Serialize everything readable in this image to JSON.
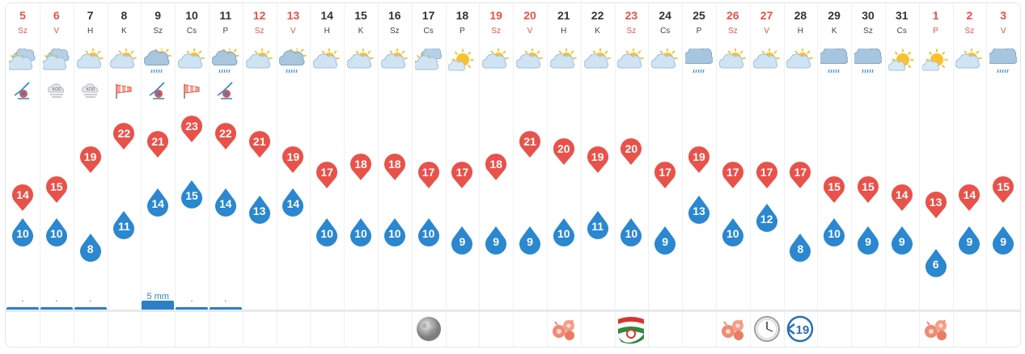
{
  "colors": {
    "max": "#e8524a",
    "min": "#2a87d0",
    "rain": "#2a7fc9",
    "weekend": "#e8524a"
  },
  "days": [
    {
      "day": "5",
      "dow": "Sz",
      "weekend": true,
      "icon": "partly-cloudy-sun-icon",
      "sub": "wind-storm-warning-icon",
      "max": "14",
      "min": "10",
      "rain": ".",
      "rain_mm": 1,
      "event": ""
    },
    {
      "day": "6",
      "dow": "V",
      "weekend": true,
      "icon": "partly-cloudy-sun-icon",
      "sub": "fog-icon",
      "max": "15",
      "min": "10",
      "rain": ".",
      "rain_mm": 1,
      "event": ""
    },
    {
      "day": "7",
      "dow": "H",
      "weekend": false,
      "icon": "sun-cloud-icon",
      "sub": "fog-icon",
      "max": "19",
      "min": "8",
      "rain": ".",
      "rain_mm": 1,
      "event": ""
    },
    {
      "day": "8",
      "dow": "K",
      "weekend": false,
      "icon": "sun-cloud-icon",
      "sub": "windsock-icon",
      "max": "22",
      "min": "11",
      "rain": "",
      "rain_mm": 0,
      "event": ""
    },
    {
      "day": "9",
      "dow": "Sz",
      "weekend": false,
      "icon": "rain-sun-cloud-icon",
      "sub": "wind-storm-warning-icon",
      "max": "21",
      "min": "14",
      "rain": "5 mm",
      "rain_mm": 5,
      "event": ""
    },
    {
      "day": "10",
      "dow": "Cs",
      "weekend": false,
      "icon": "sun-cloud-icon",
      "sub": "windsock-icon",
      "max": "23",
      "min": "15",
      "rain": ".",
      "rain_mm": 1,
      "event": ""
    },
    {
      "day": "11",
      "dow": "P",
      "weekend": false,
      "icon": "rain-sun-cloud-icon",
      "sub": "wind-storm-warning-icon",
      "max": "22",
      "min": "14",
      "rain": ".",
      "rain_mm": 1,
      "event": ""
    },
    {
      "day": "12",
      "dow": "Sz",
      "weekend": true,
      "icon": "sun-cloud-icon",
      "sub": "",
      "max": "21",
      "min": "13",
      "rain": "",
      "rain_mm": 0,
      "event": ""
    },
    {
      "day": "13",
      "dow": "V",
      "weekend": true,
      "icon": "rain-sun-cloud-icon",
      "sub": "",
      "max": "19",
      "min": "14",
      "rain": "",
      "rain_mm": 0,
      "event": ""
    },
    {
      "day": "14",
      "dow": "H",
      "weekend": false,
      "icon": "sun-cloud-icon",
      "sub": "",
      "max": "17",
      "min": "10",
      "rain": "",
      "rain_mm": 0,
      "event": ""
    },
    {
      "day": "15",
      "dow": "K",
      "weekend": false,
      "icon": "sun-cloud-icon",
      "sub": "",
      "max": "18",
      "min": "10",
      "rain": "",
      "rain_mm": 0,
      "event": ""
    },
    {
      "day": "16",
      "dow": "Sz",
      "weekend": false,
      "icon": "sun-cloud-icon",
      "sub": "",
      "max": "18",
      "min": "10",
      "rain": "",
      "rain_mm": 0,
      "event": ""
    },
    {
      "day": "17",
      "dow": "Cs",
      "weekend": false,
      "icon": "cloudy-sun-icon",
      "sub": "",
      "max": "17",
      "min": "10",
      "rain": "",
      "rain_mm": 0,
      "event": "full-moon-icon"
    },
    {
      "day": "18",
      "dow": "P",
      "weekend": false,
      "icon": "sun-small-cloud-icon",
      "sub": "",
      "max": "17",
      "min": "9",
      "rain": "",
      "rain_mm": 0,
      "event": ""
    },
    {
      "day": "19",
      "dow": "Sz",
      "weekend": true,
      "icon": "sun-cloud-icon",
      "sub": "",
      "max": "18",
      "min": "9",
      "rain": "",
      "rain_mm": 0,
      "event": ""
    },
    {
      "day": "20",
      "dow": "V",
      "weekend": true,
      "icon": "sun-cloud-icon",
      "sub": "",
      "max": "21",
      "min": "9",
      "rain": "",
      "rain_mm": 0,
      "event": ""
    },
    {
      "day": "21",
      "dow": "H",
      "weekend": false,
      "icon": "sun-cloud-icon",
      "sub": "",
      "max": "20",
      "min": "10",
      "rain": "",
      "rain_mm": 0,
      "event": "name-day-flowers-icon"
    },
    {
      "day": "22",
      "dow": "K",
      "weekend": false,
      "icon": "sun-cloud-icon",
      "sub": "",
      "max": "19",
      "min": "11",
      "rain": "",
      "rain_mm": 0,
      "event": ""
    },
    {
      "day": "23",
      "dow": "Sz",
      "weekend": true,
      "icon": "sun-cloud-icon",
      "sub": "",
      "max": "20",
      "min": "10",
      "rain": "",
      "rain_mm": 0,
      "event": "hungarian-flag-icon"
    },
    {
      "day": "24",
      "dow": "Cs",
      "weekend": false,
      "icon": "sun-cloud-icon",
      "sub": "",
      "max": "17",
      "min": "9",
      "rain": "",
      "rain_mm": 0,
      "event": ""
    },
    {
      "day": "25",
      "dow": "P",
      "weekend": false,
      "icon": "drizzle-cloud-icon",
      "sub": "",
      "max": "19",
      "min": "13",
      "rain": "",
      "rain_mm": 0,
      "event": ""
    },
    {
      "day": "26",
      "dow": "Sz",
      "weekend": true,
      "icon": "sun-cloud-icon",
      "sub": "",
      "max": "17",
      "min": "10",
      "rain": "",
      "rain_mm": 0,
      "event": "name-day-flowers-icon"
    },
    {
      "day": "27",
      "dow": "V",
      "weekend": true,
      "icon": "sun-cloud-icon",
      "sub": "",
      "max": "17",
      "min": "12",
      "rain": "",
      "rain_mm": 0,
      "event": "clock-change-icon"
    },
    {
      "day": "28",
      "dow": "H",
      "weekend": false,
      "icon": "sun-cloud-icon",
      "sub": "",
      "max": "17",
      "min": "8",
      "rain": "",
      "rain_mm": 0,
      "event": "covid-19-icon"
    },
    {
      "day": "29",
      "dow": "K",
      "weekend": false,
      "icon": "drizzle-cloud-icon",
      "sub": "",
      "max": "15",
      "min": "10",
      "rain": "",
      "rain_mm": 0,
      "event": ""
    },
    {
      "day": "30",
      "dow": "Sz",
      "weekend": false,
      "icon": "drizzle-cloud-icon",
      "sub": "",
      "max": "15",
      "min": "9",
      "rain": "",
      "rain_mm": 0,
      "event": ""
    },
    {
      "day": "31",
      "dow": "Cs",
      "weekend": false,
      "icon": "sun-small-cloud-icon",
      "sub": "",
      "max": "14",
      "min": "9",
      "rain": "",
      "rain_mm": 0,
      "event": ""
    },
    {
      "day": "1",
      "dow": "P",
      "weekend": true,
      "icon": "sun-small-cloud-icon",
      "sub": "",
      "max": "13",
      "min": "6",
      "rain": "",
      "rain_mm": 0,
      "event": "name-day-flowers-icon"
    },
    {
      "day": "2",
      "dow": "Sz",
      "weekend": true,
      "icon": "sun-cloud-icon",
      "sub": "",
      "max": "14",
      "min": "9",
      "rain": "",
      "rain_mm": 0,
      "event": ""
    },
    {
      "day": "3",
      "dow": "V",
      "weekend": true,
      "icon": "drizzle-cloud-icon",
      "sub": "",
      "max": "15",
      "min": "9",
      "rain": "",
      "rain_mm": 0,
      "event": ""
    }
  ]
}
